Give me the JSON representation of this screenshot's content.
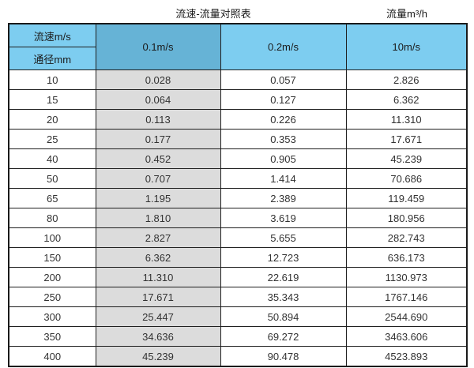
{
  "page": {
    "title_left": "流速-流量对照表",
    "title_right": "流量m³/h"
  },
  "colors": {
    "header_light_blue": "#7dcdf0",
    "header_dark_blue": "#66b3d6",
    "gray_column": "#dcdcdc",
    "border": "#1a1a1a",
    "text": "#333333"
  },
  "table": {
    "corner_top_label": "流速m/s",
    "corner_bottom_label": "通径mm",
    "velocity_headers": [
      "0.1m/s",
      "0.2m/s",
      "10m/s"
    ],
    "rows": [
      [
        "10",
        "0.028",
        "0.057",
        "2.826"
      ],
      [
        "15",
        "0.064",
        "0.127",
        "6.362"
      ],
      [
        "20",
        "0.113",
        "0.226",
        "11.310"
      ],
      [
        "25",
        "0.177",
        "0.353",
        "17.671"
      ],
      [
        "40",
        "0.452",
        "0.905",
        "45.239"
      ],
      [
        "50",
        "0.707",
        "1.414",
        "70.686"
      ],
      [
        "65",
        "1.195",
        "2.389",
        "119.459"
      ],
      [
        "80",
        "1.810",
        "3.619",
        "180.956"
      ],
      [
        "100",
        "2.827",
        "5.655",
        "282.743"
      ],
      [
        "150",
        "6.362",
        "12.723",
        "636.173"
      ],
      [
        "200",
        "11.310",
        "22.619",
        "1130.973"
      ],
      [
        "250",
        "17.671",
        "35.343",
        "1767.146"
      ],
      [
        "300",
        "25.447",
        "50.894",
        "2544.690"
      ],
      [
        "350",
        "34.636",
        "69.272",
        "3463.606"
      ],
      [
        "400",
        "45.239",
        "90.478",
        "4523.893"
      ]
    ]
  },
  "chart_data": {
    "type": "table",
    "title": "流速-流量对照表",
    "unit_label": "流量m³/h",
    "columns": [
      "通径mm",
      "0.1m/s",
      "0.2m/s",
      "10m/s"
    ],
    "rows": [
      [
        10,
        0.028,
        0.057,
        2.826
      ],
      [
        15,
        0.064,
        0.127,
        6.362
      ],
      [
        20,
        0.113,
        0.226,
        11.31
      ],
      [
        25,
        0.177,
        0.353,
        17.671
      ],
      [
        40,
        0.452,
        0.905,
        45.239
      ],
      [
        50,
        0.707,
        1.414,
        70.686
      ],
      [
        65,
        1.195,
        2.389,
        119.459
      ],
      [
        80,
        1.81,
        3.619,
        180.956
      ],
      [
        100,
        2.827,
        5.655,
        282.743
      ],
      [
        150,
        6.362,
        12.723,
        636.173
      ],
      [
        200,
        11.31,
        22.619,
        1130.973
      ],
      [
        250,
        17.671,
        35.343,
        1767.146
      ],
      [
        300,
        25.447,
        50.894,
        2544.69
      ],
      [
        350,
        34.636,
        69.272,
        3463.606
      ],
      [
        400,
        45.239,
        90.478,
        4523.893
      ]
    ]
  }
}
